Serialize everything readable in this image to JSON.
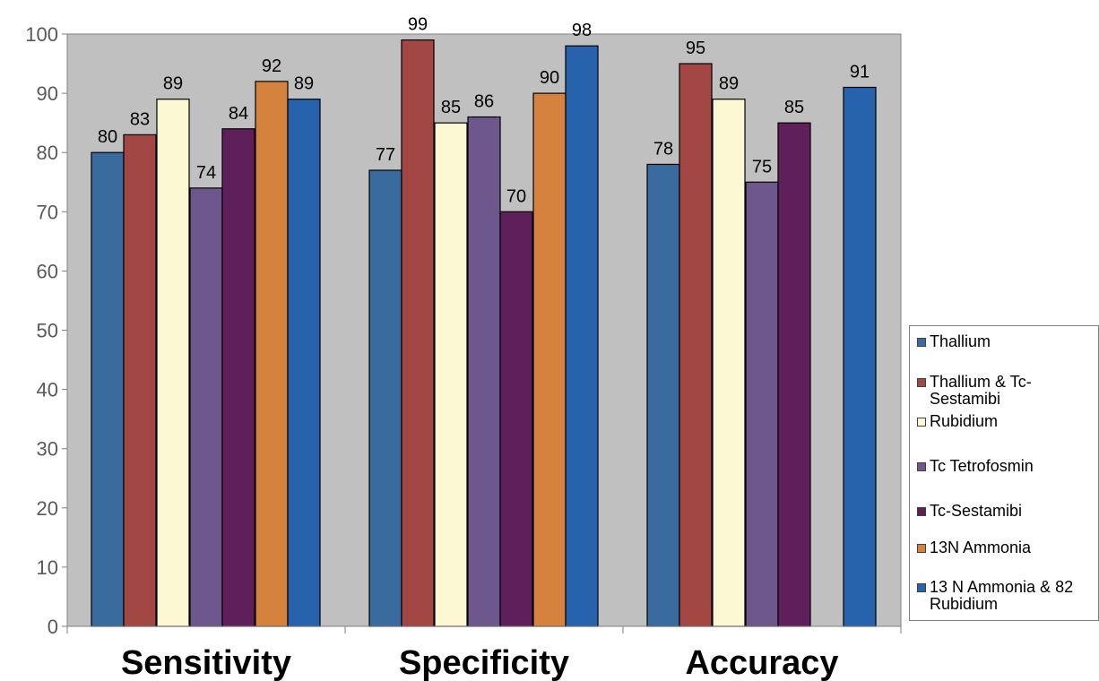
{
  "chart_data": {
    "type": "bar",
    "categories": [
      "Sensitivity",
      "Specificity",
      "Accuracy"
    ],
    "ylim": [
      0,
      100
    ],
    "yticks": [
      0,
      10,
      20,
      30,
      40,
      50,
      60,
      70,
      80,
      90,
      100
    ],
    "grid": false,
    "legend_position": "right",
    "plot_background": "#c0c0c0",
    "series": [
      {
        "name": "Thallium",
        "color": "#3a6b9e",
        "values": [
          80,
          77,
          78
        ]
      },
      {
        "name": "Thallium & Tc-\nSestamibi",
        "color": "#a34744",
        "values": [
          83,
          99,
          95
        ]
      },
      {
        "name": "Rubidium",
        "color": "#fcf8d4",
        "values": [
          89,
          85,
          89
        ]
      },
      {
        "name": "Tc Tetrofosmin",
        "color": "#6d578d",
        "values": [
          74,
          86,
          75
        ]
      },
      {
        "name": "Tc-Sestamibi",
        "color": "#5f1f5b",
        "values": [
          84,
          70,
          85
        ]
      },
      {
        "name": "13N Ammonia",
        "color": "#d5823f",
        "values": [
          92,
          90,
          null
        ]
      },
      {
        "name": "13 N Ammonia & 82\nRubidium",
        "color": "#2762ad",
        "values": [
          89,
          98,
          91
        ]
      }
    ]
  }
}
